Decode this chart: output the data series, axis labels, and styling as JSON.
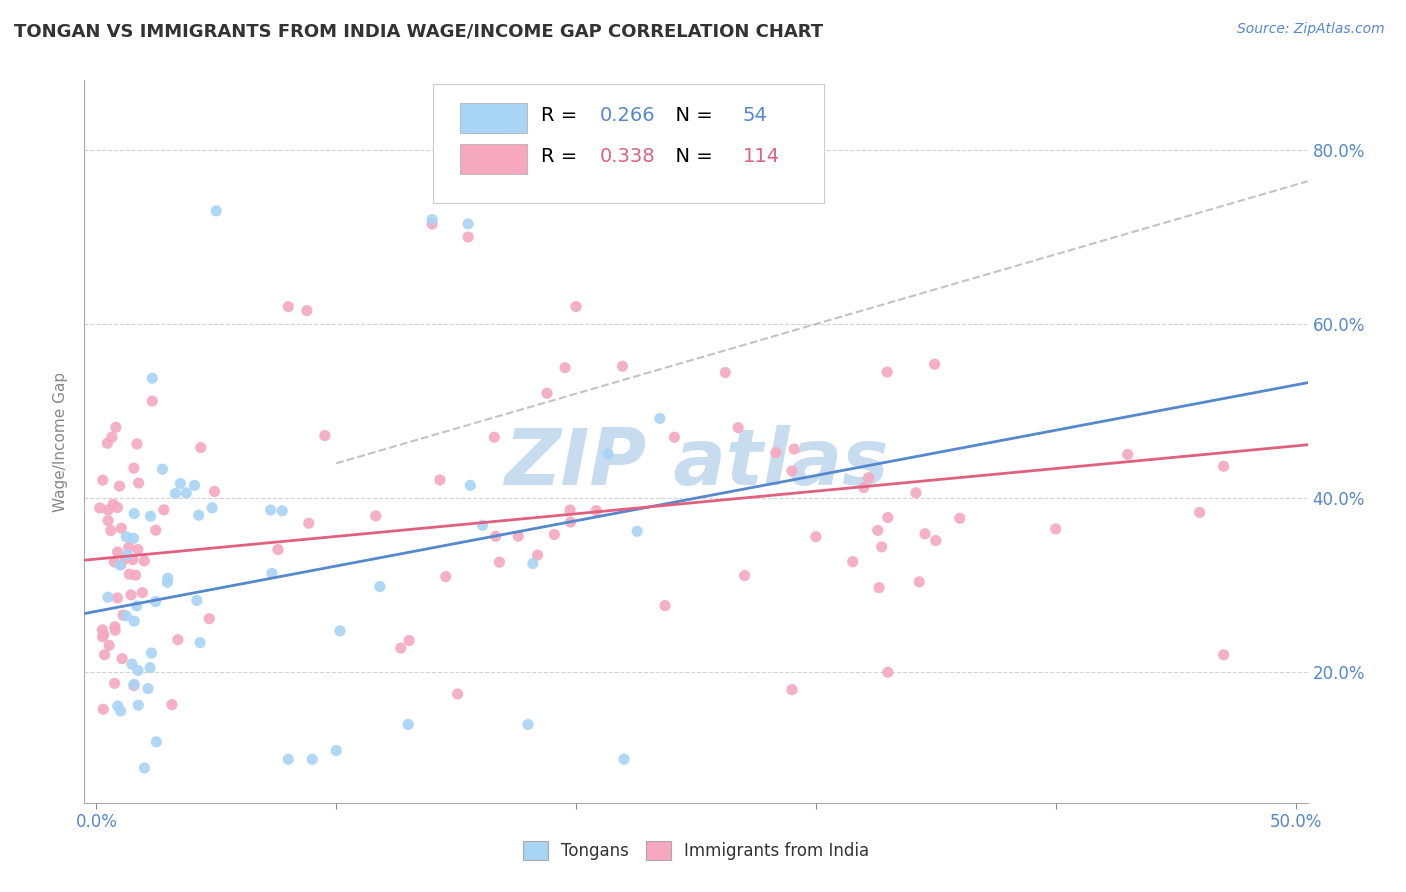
{
  "title": "TONGAN VS IMMIGRANTS FROM INDIA WAGE/INCOME GAP CORRELATION CHART",
  "source": "Source: ZipAtlas.com",
  "ylabel": "Wage/Income Gap",
  "xlim": [
    -0.005,
    0.505
  ],
  "ylim": [
    0.05,
    0.88
  ],
  "yticks": [
    0.2,
    0.4,
    0.6,
    0.8
  ],
  "ytick_labels": [
    "20.0%",
    "40.0%",
    "60.0%",
    "80.0%"
  ],
  "xtick_labels": [
    "0.0%",
    "",
    "",
    "",
    "",
    "50.0%"
  ],
  "legend1_R": "0.266",
  "legend1_N": "54",
  "legend2_R": "0.338",
  "legend2_N": "114",
  "color_tongan": "#A8D4F5",
  "color_india": "#F5A8C0",
  "line_tongan": "#5588CC",
  "line_india": "#E06080",
  "background_color": "#FFFFFF",
  "grid_color": "#C8C8C8",
  "title_color": "#333333",
  "axis_label_color": "#5588CC",
  "watermark_color": "#C8DCF0"
}
